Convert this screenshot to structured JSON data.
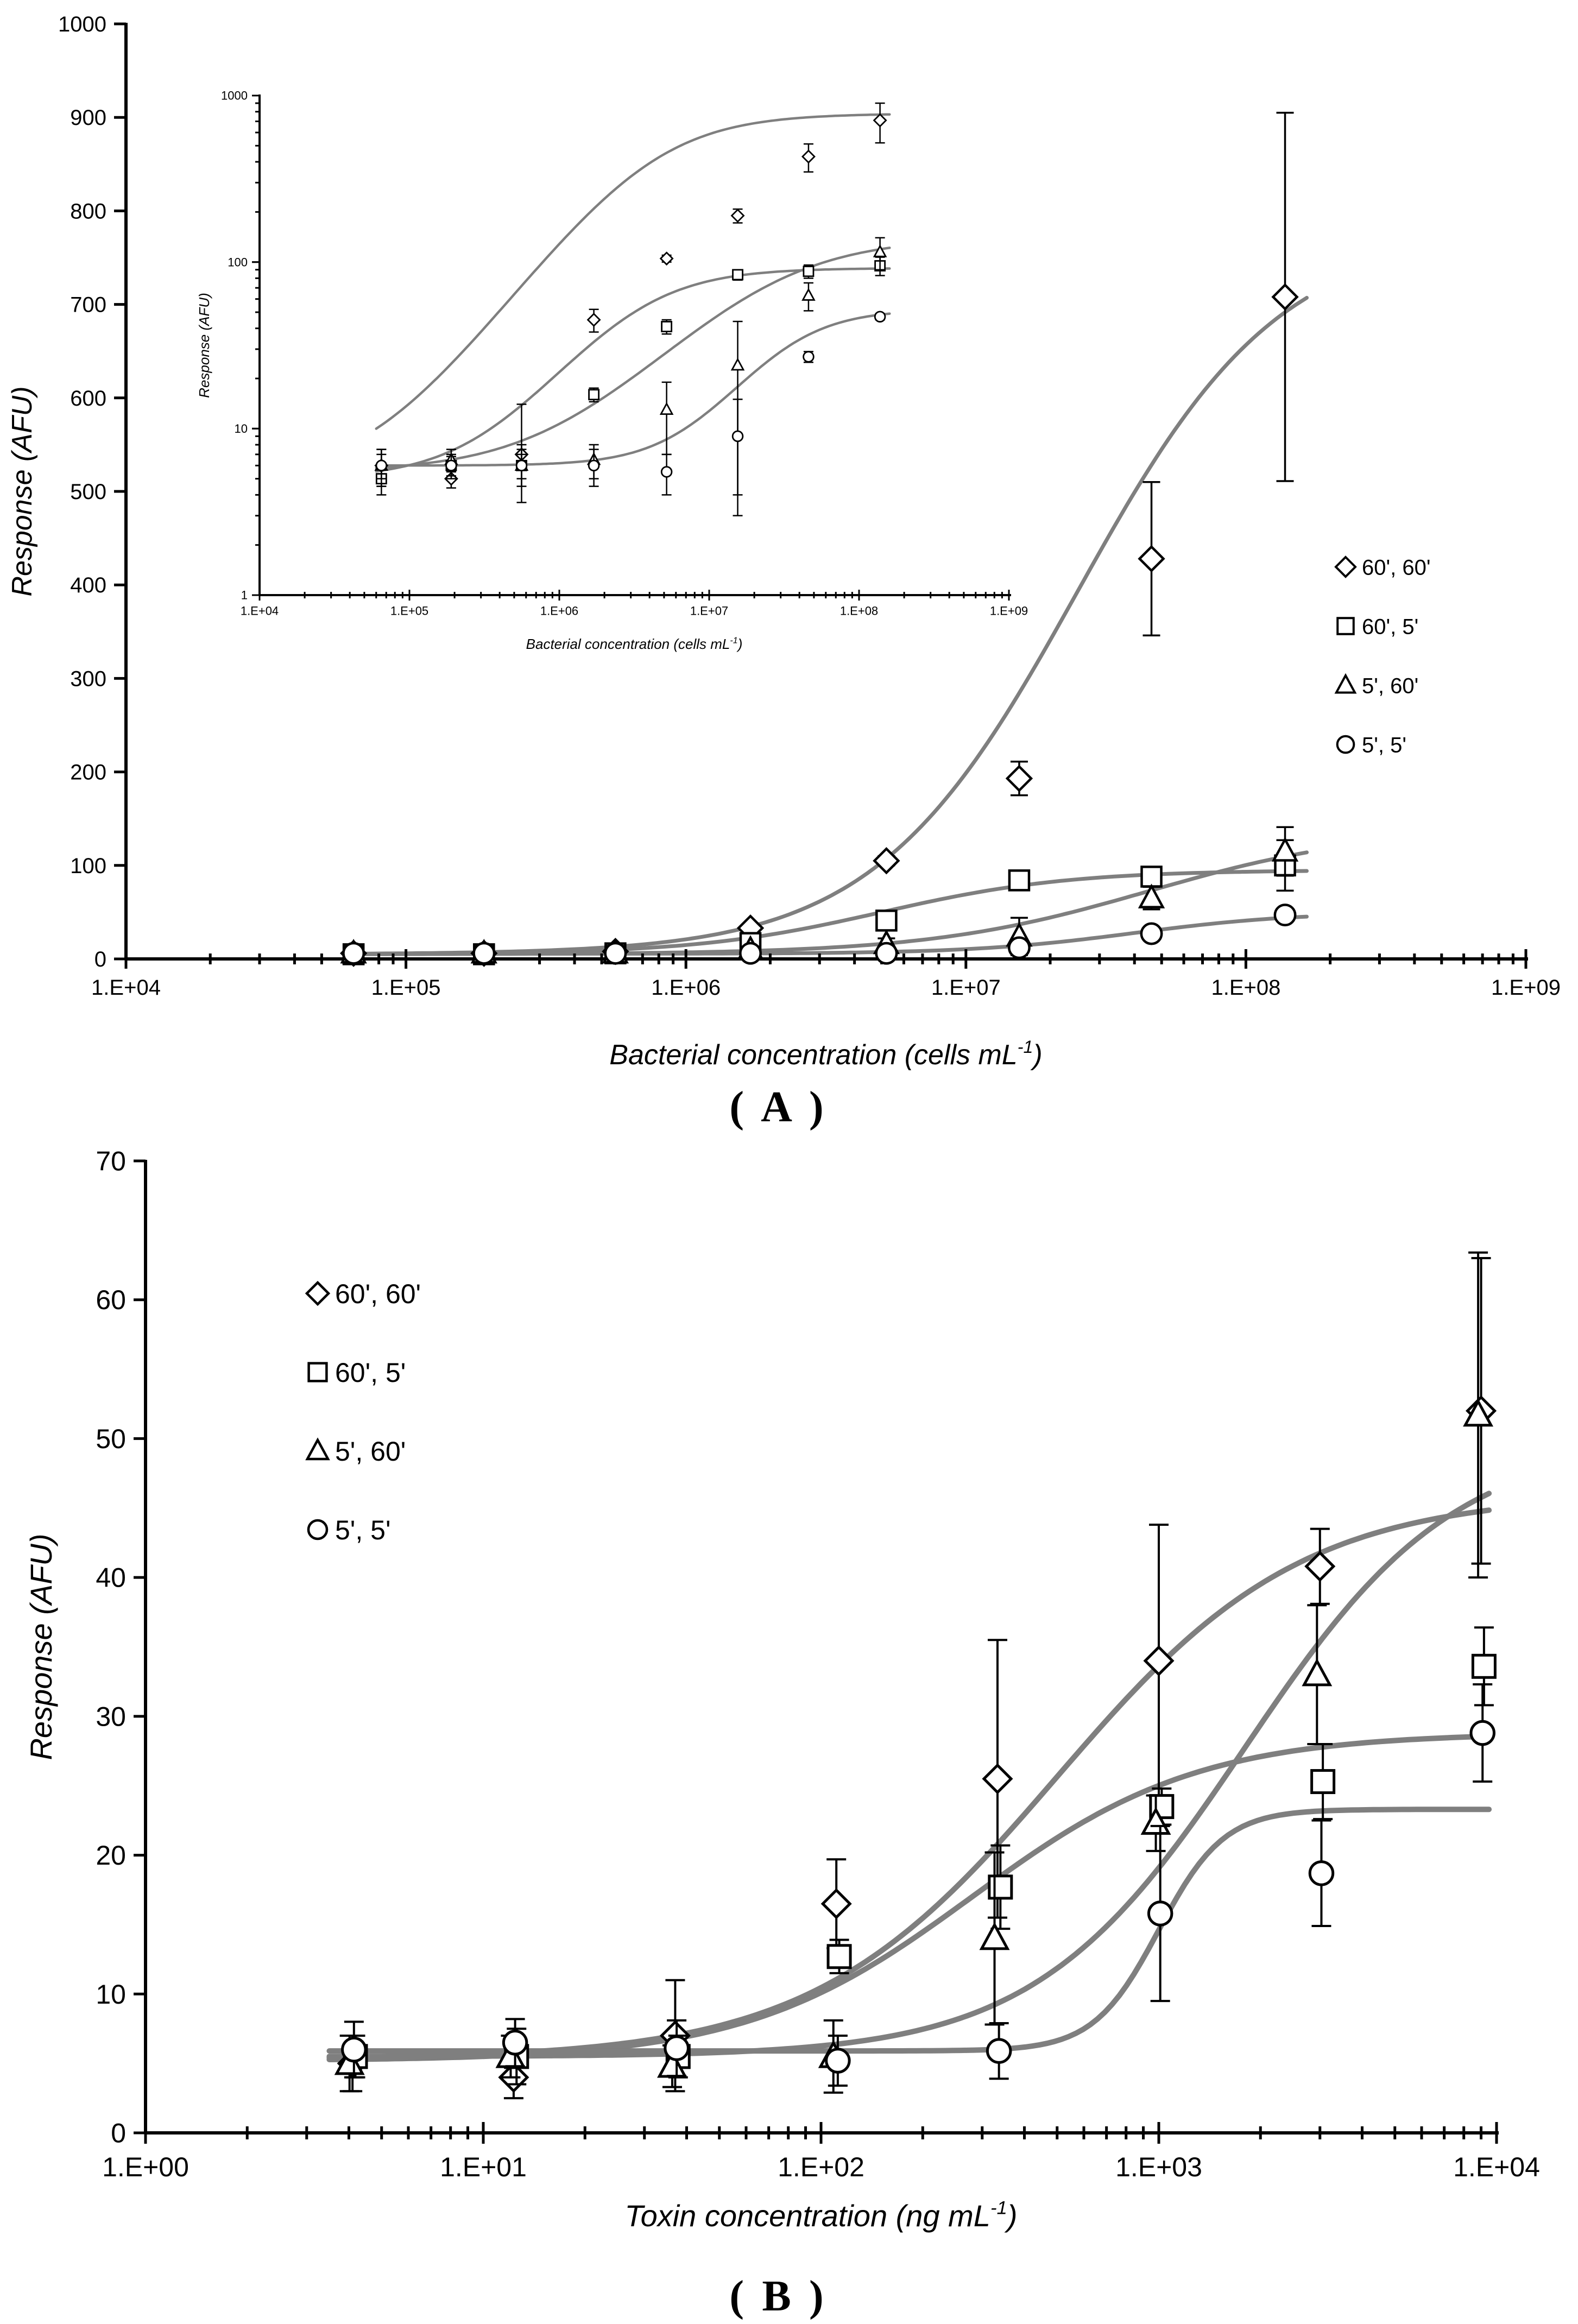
{
  "panel_labels": {
    "a": "A",
    "b": "B"
  },
  "chart_data": [
    {
      "type": "scatter",
      "id": "A-main",
      "xscale": "log",
      "xlim": [
        10000,
        1000000000
      ],
      "ylim": [
        0,
        1000
      ],
      "yticks": [
        0,
        100,
        200,
        300,
        400,
        500,
        600,
        700,
        800,
        900,
        1000
      ],
      "xticks": [
        "1.E+04",
        "1.E+05",
        "1.E+06",
        "1.E+07",
        "1.E+08",
        "1.E+09"
      ],
      "xlabel": "Bacterial concentration (cells mL",
      "xlabel_sup": "-1",
      "xlabel_end": ")",
      "ylabel": "Response (AFU)",
      "legend": [
        "60', 60'",
        "60', 5'",
        "5', 60'",
        "5', 5'"
      ],
      "x": [
        65000,
        190000,
        560000,
        1700000,
        5200000,
        15500000,
        46000000,
        138000000
      ],
      "series": [
        {
          "name": "60', 60'",
          "marker": "diamond",
          "values": [
            6,
            6,
            8,
            33,
            105,
            193,
            428,
            708
          ],
          "err": [
            1,
            1,
            2,
            3,
            5,
            18,
            82,
            197
          ],
          "fit": {
            "bottom": 5,
            "top": 780,
            "ec50": 25000000,
            "hill": 1.2
          }
        },
        {
          "name": "60', 5'",
          "marker": "square",
          "values": [
            5,
            5,
            6,
            17,
            41,
            84,
            88,
            100
          ],
          "err": [
            1,
            1,
            1,
            2,
            4,
            6,
            8,
            27
          ],
          "fit": {
            "bottom": 5,
            "top": 95,
            "ec50": 5000000,
            "hill": 1.3
          }
        },
        {
          "name": "5', 60'",
          "marker": "triangle",
          "values": [
            6,
            6,
            6,
            10,
            16,
            24,
            65,
            115
          ],
          "err": [
            1,
            1,
            8,
            3,
            6,
            20,
            12,
            26
          ],
          "fit": {
            "bottom": 5,
            "top": 140,
            "ec50": 45000000,
            "hill": 1.1
          }
        },
        {
          "name": "5', 5'",
          "marker": "circle",
          "values": [
            6,
            6,
            6,
            6,
            6,
            12,
            27,
            47
          ],
          "err": [
            1,
            1,
            1,
            2,
            3,
            5,
            3,
            2
          ],
          "fit": {
            "bottom": 5.5,
            "top": 50,
            "ec50": 40000000,
            "hill": 1.5
          }
        }
      ]
    },
    {
      "type": "scatter",
      "id": "A-inset",
      "xscale": "log",
      "yscale": "log",
      "xlim": [
        10000,
        1000000000
      ],
      "ylim": [
        1,
        1000
      ],
      "yticks": [
        "1",
        "10",
        "100",
        "1000"
      ],
      "xticks": [
        "1.E+04",
        "1.E+05",
        "1.E+06",
        "1.E+07",
        "1.E+08",
        "1.E+09"
      ],
      "xlabel": "Bacterial concentration (cells mL",
      "xlabel_sup": "-1",
      "xlabel_end": ")",
      "ylabel": "Response (AFU)",
      "x": [
        65000,
        190000,
        560000,
        1700000,
        5200000,
        15500000,
        46000000,
        138000000
      ],
      "series": [
        {
          "name": "60', 60'",
          "marker": "diamond",
          "values": [
            6,
            5,
            7,
            45,
            105,
            190,
            430,
            710
          ],
          "err": [
            1.5,
            0.6,
            1,
            7,
            5,
            18,
            82,
            190
          ],
          "fit": {
            "bottom": 5,
            "top": 780,
            "ec50": 4000000,
            "hill": 1.2
          }
        },
        {
          "name": "60', 5'",
          "marker": "square",
          "values": [
            5,
            6,
            6,
            16,
            41,
            84,
            88,
            95
          ],
          "err": [
            1,
            0.8,
            1,
            1.5,
            4,
            6,
            8,
            12
          ],
          "fit": {
            "bottom": 5,
            "top": 92,
            "ec50": 3000000,
            "hill": 1.3
          }
        },
        {
          "name": "5', 60'",
          "marker": "triangle",
          "values": [
            6,
            6.5,
            6,
            6.5,
            13,
            24,
            63,
            115
          ],
          "err": [
            1,
            1,
            8,
            1.5,
            6,
            20,
            12,
            25
          ],
          "fit": {
            "bottom": 5.5,
            "top": 140,
            "ec50": 25000000,
            "hill": 1.0
          }
        },
        {
          "name": "5', 5'",
          "marker": "circle",
          "values": [
            6,
            6,
            6,
            6,
            5.5,
            9,
            27,
            47
          ],
          "err": [
            1.5,
            1,
            1.5,
            1.5,
            1.5,
            6,
            2,
            2
          ],
          "fit": {
            "bottom": 6,
            "top": 52,
            "ec50": 30000000,
            "hill": 1.6
          }
        }
      ]
    },
    {
      "type": "scatter",
      "id": "B",
      "xscale": "log",
      "xlim": [
        1,
        10000
      ],
      "ylim": [
        0,
        70
      ],
      "yticks": [
        0,
        10,
        20,
        30,
        40,
        50,
        60,
        70
      ],
      "xticks": [
        "1.E+00",
        "1.E+01",
        "1.E+02",
        "1.E+03",
        "1.E+04"
      ],
      "xlabel": "Toxin concentration (ng mL",
      "xlabel_sup": "-1",
      "xlabel_end": ")",
      "ylabel": "Response (AFU)",
      "legend": [
        "60', 60'",
        "60', 5'",
        "5', 60'",
        "5', 5'"
      ],
      "x": [
        4.1,
        12.3,
        37,
        111,
        333,
        1000,
        3000,
        9000
      ],
      "series": [
        {
          "name": "60', 60'",
          "marker": "diamond",
          "values": [
            5,
            4,
            7,
            16.5,
            25.5,
            34,
            40.8,
            52
          ],
          "err": [
            2,
            1.5,
            4,
            3.2,
            10,
            9.8,
            2.7,
            11
          ],
          "fit": {
            "bottom": 5.3,
            "top": 46,
            "ec50": 500,
            "hill": 1.2
          }
        },
        {
          "name": "60', 5'",
          "marker": "square",
          "values": [
            5.5,
            5.5,
            5.5,
            12.7,
            17.7,
            23.5,
            25.3,
            33.6
          ],
          "err": [
            1.5,
            2,
            1.5,
            1.2,
            3,
            1.3,
            2.7,
            2.8
          ],
          "fit": {
            "bottom": 5.2,
            "top": 28.8,
            "ec50": 280,
            "hill": 1.3
          }
        },
        {
          "name": "5', 60'",
          "marker": "triangle",
          "values": [
            5,
            5.5,
            4.8,
            5.5,
            14,
            22.3,
            33,
            51.7
          ],
          "err": [
            2,
            1.5,
            1.5,
            2.6,
            6.2,
            2,
            5,
            11.7
          ],
          "fit": {
            "bottom": 5.5,
            "top": 50,
            "ec50": 1800,
            "hill": 1.4
          }
        },
        {
          "name": "5', 5'",
          "marker": "circle",
          "values": [
            6,
            6.5,
            6.1,
            5.2,
            5.9,
            15.8,
            18.7,
            28.8
          ],
          "err": [
            2,
            1.7,
            2,
            1.8,
            2,
            6.3,
            3.8,
            3.5
          ],
          "fit": {
            "bottom": 5.9,
            "top": 23.3,
            "ec50": 1000,
            "hill": 4.5
          }
        }
      ]
    }
  ]
}
